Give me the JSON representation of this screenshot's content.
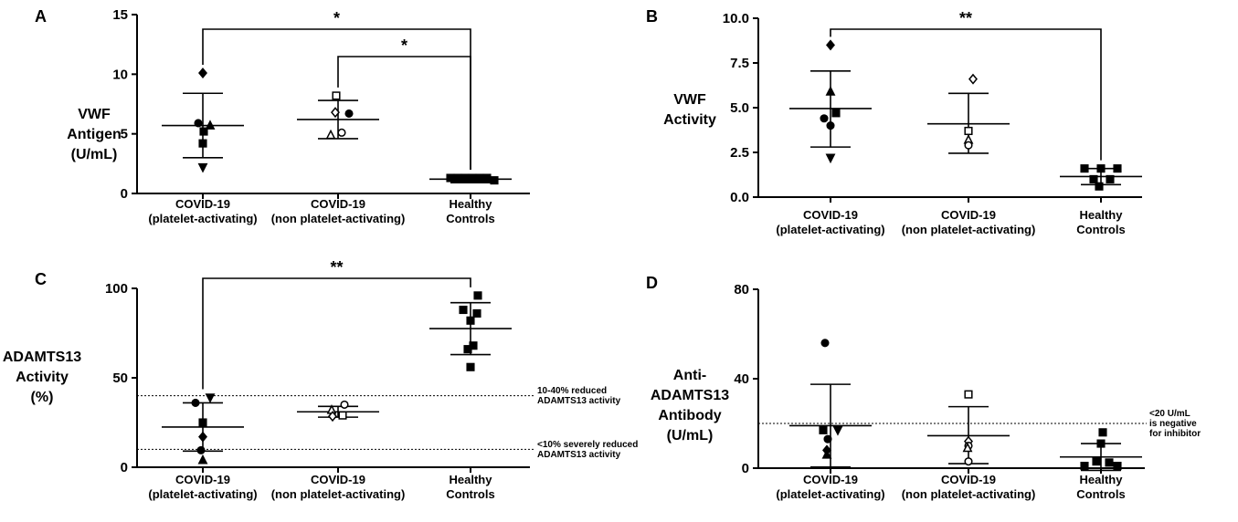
{
  "chart_data": [
    {
      "type": "scatter",
      "panel": "A",
      "ylabel": [
        "VWF",
        "Antigen",
        "(U/mL)"
      ],
      "ylim": [
        0,
        15
      ],
      "yticks": [
        0,
        5,
        10,
        15
      ],
      "categories": [
        [
          "COVID-19",
          "(platelet-activating)"
        ],
        [
          "COVID-19",
          "(non platelet-activating)"
        ],
        [
          "Healthy",
          "Controls"
        ]
      ],
      "series": [
        {
          "points": [
            {
              "y": 10.1,
              "marker": "diamond",
              "fill": "filled",
              "dx": 0
            },
            {
              "y": 5.9,
              "marker": "circle",
              "fill": "filled",
              "dx": -5
            },
            {
              "y": 5.7,
              "marker": "triangle",
              "fill": "filled",
              "dx": 8
            },
            {
              "y": 5.2,
              "marker": "square",
              "fill": "filled",
              "dx": 1
            },
            {
              "y": 4.2,
              "marker": "square",
              "fill": "filled",
              "dx": 0
            },
            {
              "y": 2.2,
              "marker": "triangle-down",
              "fill": "filled",
              "dx": 0
            }
          ],
          "mean": 5.7,
          "sd_low": 3.0,
          "sd_high": 8.4
        },
        {
          "points": [
            {
              "y": 8.2,
              "marker": "square",
              "fill": "open",
              "dx": -2
            },
            {
              "y": 6.8,
              "marker": "diamond",
              "fill": "open",
              "dx": -3
            },
            {
              "y": 6.7,
              "marker": "circle",
              "fill": "filled",
              "dx": 12
            },
            {
              "y": 5.1,
              "marker": "circle",
              "fill": "open",
              "dx": 4
            },
            {
              "y": 4.9,
              "marker": "triangle",
              "fill": "open",
              "dx": -8
            }
          ],
          "mean": 6.2,
          "sd_low": 4.6,
          "sd_high": 7.8
        },
        {
          "points": [
            {
              "y": 1.3,
              "marker": "square",
              "fill": "filled",
              "dx": -22
            },
            {
              "y": 1.3,
              "marker": "square",
              "fill": "filled",
              "dx": -14
            },
            {
              "y": 1.3,
              "marker": "square",
              "fill": "filled",
              "dx": -6
            },
            {
              "y": 1.3,
              "marker": "square",
              "fill": "filled",
              "dx": 2
            },
            {
              "y": 1.3,
              "marker": "square",
              "fill": "filled",
              "dx": 10
            },
            {
              "y": 1.3,
              "marker": "square",
              "fill": "filled",
              "dx": 18
            },
            {
              "y": 1.1,
              "marker": "square",
              "fill": "filled",
              "dx": 26
            }
          ],
          "mean": 1.2,
          "sd_low": 0.9,
          "sd_high": 1.5
        }
      ],
      "significance": [
        {
          "from": 0,
          "to": 2,
          "label": "*",
          "level": 0
        },
        {
          "from": 1,
          "to": 2,
          "label": "*",
          "level": 1
        }
      ],
      "reference_lines": []
    },
    {
      "type": "scatter",
      "panel": "B",
      "ylabel": [
        "VWF",
        "Activity"
      ],
      "ylim": [
        0,
        10
      ],
      "yticks": [
        "0.0",
        "2.5",
        "5.0",
        "7.5",
        "10.0"
      ],
      "categories": [
        [
          "COVID-19",
          "(platelet-activating)"
        ],
        [
          "COVID-19",
          "(non platelet-activating)"
        ],
        [
          "Healthy",
          "Controls"
        ]
      ],
      "series": [
        {
          "points": [
            {
              "y": 8.5,
              "marker": "diamond",
              "fill": "filled",
              "dx": 0
            },
            {
              "y": 5.9,
              "marker": "triangle",
              "fill": "filled",
              "dx": 0
            },
            {
              "y": 4.7,
              "marker": "square",
              "fill": "filled",
              "dx": 6
            },
            {
              "y": 4.4,
              "marker": "circle",
              "fill": "filled",
              "dx": -7
            },
            {
              "y": 4.0,
              "marker": "circle",
              "fill": "filled",
              "dx": 0
            },
            {
              "y": 2.2,
              "marker": "triangle-down",
              "fill": "filled",
              "dx": 0
            }
          ],
          "mean": 4.95,
          "sd_low": 2.8,
          "sd_high": 7.05
        },
        {
          "points": [
            {
              "y": 6.6,
              "marker": "diamond",
              "fill": "open",
              "dx": 5
            },
            {
              "y": 3.7,
              "marker": "square",
              "fill": "open",
              "dx": 0
            },
            {
              "y": 3.2,
              "marker": "triangle",
              "fill": "open",
              "dx": 0
            },
            {
              "y": 2.9,
              "marker": "circle",
              "fill": "open",
              "dx": 0
            }
          ],
          "mean": 4.1,
          "sd_low": 2.45,
          "sd_high": 5.8
        },
        {
          "points": [
            {
              "y": 1.6,
              "marker": "square",
              "fill": "filled",
              "dx": -18
            },
            {
              "y": 1.6,
              "marker": "square",
              "fill": "filled",
              "dx": 0
            },
            {
              "y": 1.6,
              "marker": "square",
              "fill": "filled",
              "dx": 18
            },
            {
              "y": 1.0,
              "marker": "square",
              "fill": "filled",
              "dx": -8
            },
            {
              "y": 1.0,
              "marker": "square",
              "fill": "filled",
              "dx": 10
            },
            {
              "y": 0.6,
              "marker": "square",
              "fill": "filled",
              "dx": -2
            }
          ],
          "mean": 1.15,
          "sd_low": 0.7,
          "sd_high": 1.6
        }
      ],
      "significance": [
        {
          "from": 0,
          "to": 2,
          "label": "**",
          "level": 0
        }
      ],
      "reference_lines": []
    },
    {
      "type": "scatter",
      "panel": "C",
      "ylabel": [
        "ADAMTS13",
        "Activity",
        "(%)"
      ],
      "ylim": [
        0,
        100
      ],
      "yticks": [
        0,
        50,
        100
      ],
      "categories": [
        [
          "COVID-19",
          "(platelet-activating)"
        ],
        [
          "COVID-19",
          "(non platelet-activating)"
        ],
        [
          "Healthy",
          "Controls"
        ]
      ],
      "series": [
        {
          "points": [
            {
              "y": 39,
              "marker": "triangle-down",
              "fill": "filled",
              "dx": 8
            },
            {
              "y": 36,
              "marker": "circle",
              "fill": "filled",
              "dx": -8
            },
            {
              "y": 25,
              "marker": "square",
              "fill": "filled",
              "dx": 0
            },
            {
              "y": 17,
              "marker": "diamond",
              "fill": "filled",
              "dx": 0
            },
            {
              "y": 9.5,
              "marker": "circle",
              "fill": "filled",
              "dx": -2
            },
            {
              "y": 4,
              "marker": "triangle",
              "fill": "filled",
              "dx": 0
            }
          ],
          "mean": 22.5,
          "sd_low": 9,
          "sd_high": 36
        },
        {
          "points": [
            {
              "y": 35,
              "marker": "circle",
              "fill": "open",
              "dx": 7
            },
            {
              "y": 32,
              "marker": "triangle",
              "fill": "open",
              "dx": -7
            },
            {
              "y": 29,
              "marker": "square",
              "fill": "open",
              "dx": 5
            },
            {
              "y": 28.5,
              "marker": "diamond",
              "fill": "open",
              "dx": -6
            }
          ],
          "mean": 31,
          "sd_low": 28,
          "sd_high": 34
        },
        {
          "points": [
            {
              "y": 96,
              "marker": "square",
              "fill": "filled",
              "dx": 8
            },
            {
              "y": 88,
              "marker": "square",
              "fill": "filled",
              "dx": -8
            },
            {
              "y": 86,
              "marker": "square",
              "fill": "filled",
              "dx": 7
            },
            {
              "y": 82,
              "marker": "square",
              "fill": "filled",
              "dx": 0
            },
            {
              "y": 68,
              "marker": "square",
              "fill": "filled",
              "dx": 3
            },
            {
              "y": 66,
              "marker": "square",
              "fill": "filled",
              "dx": -3
            },
            {
              "y": 56,
              "marker": "square",
              "fill": "filled",
              "dx": 0
            }
          ],
          "mean": 77.5,
          "sd_low": 63,
          "sd_high": 92
        }
      ],
      "significance": [
        {
          "from": 0,
          "to": 2,
          "label": "**",
          "level": 0
        }
      ],
      "reference_lines": [
        {
          "y": 40,
          "label": [
            "10-40% reduced",
            "ADAMTS13 activity"
          ]
        },
        {
          "y": 10,
          "label": [
            "<10% severely reduced",
            "ADAMTS13 activity"
          ]
        }
      ]
    },
    {
      "type": "scatter",
      "panel": "D",
      "ylabel": [
        "Anti-",
        "ADAMTS13",
        "Antibody",
        "(U/mL)"
      ],
      "ylim": [
        0,
        80
      ],
      "yticks": [
        0,
        40,
        80
      ],
      "categories": [
        [
          "COVID-19",
          "(platelet-activating)"
        ],
        [
          "COVID-19",
          "(non platelet-activating)"
        ],
        [
          "Healthy",
          "Controls"
        ]
      ],
      "series": [
        {
          "points": [
            {
              "y": 56,
              "marker": "circle",
              "fill": "filled",
              "dx": -6
            },
            {
              "y": 17,
              "marker": "square",
              "fill": "filled",
              "dx": -8
            },
            {
              "y": 17,
              "marker": "triangle-down",
              "fill": "filled",
              "dx": 8
            },
            {
              "y": 13,
              "marker": "circle",
              "fill": "filled",
              "dx": -3
            },
            {
              "y": 8,
              "marker": "diamond",
              "fill": "filled",
              "dx": -4
            },
            {
              "y": 6,
              "marker": "triangle",
              "fill": "filled",
              "dx": -4
            }
          ],
          "mean": 19,
          "sd_low": 0.5,
          "sd_high": 37.5
        },
        {
          "points": [
            {
              "y": 33,
              "marker": "square",
              "fill": "open",
              "dx": 0
            },
            {
              "y": 12,
              "marker": "diamond",
              "fill": "open",
              "dx": 0
            },
            {
              "y": 10,
              "marker": "circle",
              "fill": "open",
              "dx": 0
            },
            {
              "y": 9,
              "marker": "triangle",
              "fill": "open",
              "dx": -1
            },
            {
              "y": 3,
              "marker": "circle",
              "fill": "open",
              "dx": 0
            }
          ],
          "mean": 14.5,
          "sd_low": 2,
          "sd_high": 27.5
        },
        {
          "points": [
            {
              "y": 16,
              "marker": "square",
              "fill": "filled",
              "dx": 2
            },
            {
              "y": 11,
              "marker": "square",
              "fill": "filled",
              "dx": 0
            },
            {
              "y": 3,
              "marker": "square",
              "fill": "filled",
              "dx": -5
            },
            {
              "y": 2.5,
              "marker": "square",
              "fill": "filled",
              "dx": 9
            },
            {
              "y": 1,
              "marker": "square",
              "fill": "filled",
              "dx": -18
            },
            {
              "y": 1,
              "marker": "square",
              "fill": "filled",
              "dx": 18
            }
          ],
          "mean": 5,
          "sd_low": -1,
          "sd_high": 11
        }
      ],
      "significance": [],
      "reference_lines": [
        {
          "y": 20,
          "label": [
            "<20 U/mL",
            "is negative",
            "for inhibitor"
          ]
        }
      ]
    }
  ]
}
